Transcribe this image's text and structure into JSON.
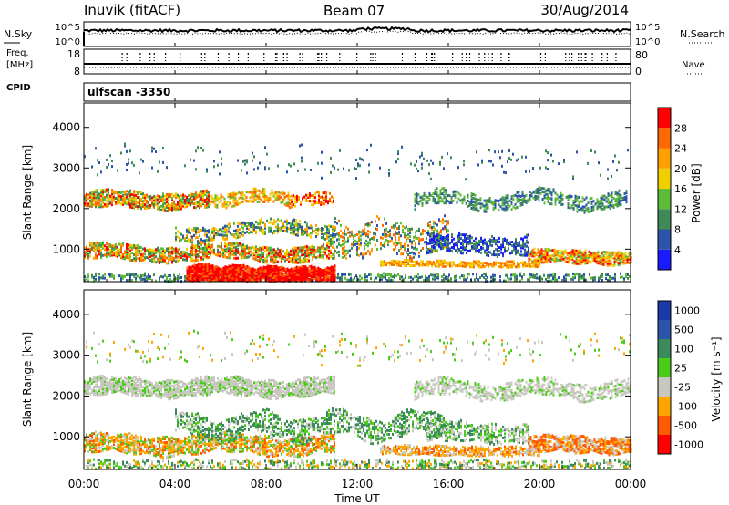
{
  "header": {
    "station": "Inuvik (fitACF)",
    "beam": "Beam 07",
    "date": "30/Aug/2014"
  },
  "top_panels": {
    "nsky_label": "N.Sky",
    "nsearch_label": "N.Search",
    "noise_ticks_left": [
      "10^5",
      "10^0"
    ],
    "noise_ticks_right": [
      "10^5",
      "10^0"
    ],
    "freq_label_1": "Freq.",
    "freq_label_2": "[MHz]",
    "freq_ticks": [
      "18",
      "8"
    ],
    "nave_label": "Nave",
    "nave_ticks": [
      "80",
      "0"
    ],
    "cpid_label": "CPID",
    "cpid_value": "ulfscan -3350"
  },
  "colors": {
    "power": [
      "#1a1aff",
      "#2c54a8",
      "#3f8a56",
      "#5dbb3a",
      "#f0d000",
      "#ffa000",
      "#ff6a00",
      "#ff0000"
    ],
    "velocity": [
      "#ff0000",
      "#ff5a00",
      "#ffa500",
      "#c8c8c0",
      "#4ccc1a",
      "#3a8a5a",
      "#2c54a8",
      "#1a3aa8"
    ]
  },
  "chart_data": [
    {
      "type": "heatmap",
      "name": "power",
      "ylabel": "Slant Range [km]",
      "yticks": [
        1000,
        2000,
        3000,
        4000
      ],
      "ylim": [
        200,
        4600
      ],
      "xticks": [
        "00:00",
        "04:00",
        "08:00",
        "12:00",
        "16:00",
        "20:00",
        "00:00"
      ],
      "xlim_hours": [
        0,
        24
      ],
      "colorbar": {
        "label": "Power [dB]",
        "ticks": [
          4,
          8,
          12,
          16,
          20,
          24,
          28
        ],
        "range": [
          0,
          32
        ]
      }
    },
    {
      "type": "heatmap",
      "name": "velocity",
      "ylabel": "Slant Range [km]",
      "yticks": [
        1000,
        2000,
        3000,
        4000
      ],
      "ylim": [
        200,
        4600
      ],
      "xticks": [
        "00:00",
        "04:00",
        "08:00",
        "12:00",
        "16:00",
        "20:00",
        "00:00"
      ],
      "xlim_hours": [
        0,
        24
      ],
      "xlabel": "Time UT",
      "colorbar": {
        "label": "Velocity [m s⁻¹]",
        "ticks": [
          1000,
          500,
          100,
          25,
          -25,
          -100,
          -500,
          -1000
        ]
      }
    }
  ]
}
